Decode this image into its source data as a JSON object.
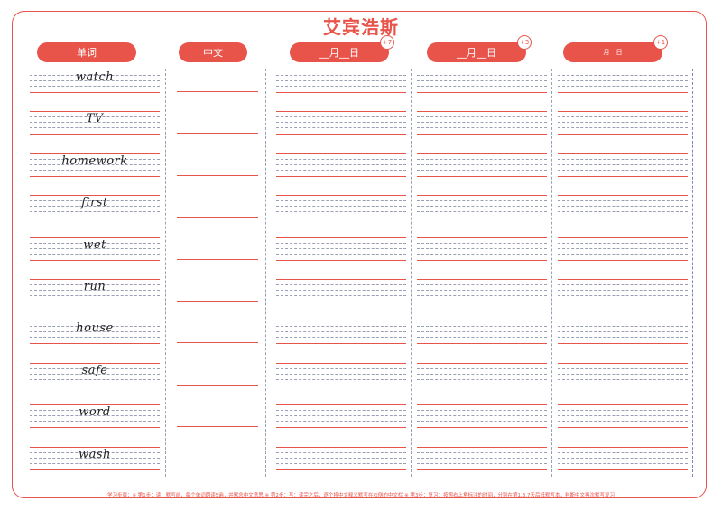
{
  "title": "艾宾浩斯",
  "headers": {
    "word": "单词",
    "chinese": "中文",
    "review1": "__月__日",
    "review2": "__月__日",
    "review3": "月　日"
  },
  "badges": {
    "review1": "+7",
    "review2": "+3",
    "review3": "+1"
  },
  "words": [
    "watch",
    "TV",
    "homework",
    "first",
    "wet",
    "run",
    "house",
    "safe",
    "word",
    "wash"
  ],
  "footer": "学习步骤：※ 第1步：读：默写前，每个单词朗读5遍，并默念中文意思 ※ 第2步：写：读完之后，逐个将中文释义默写在右侧的中文栏 ※ 第3步：复习：按照右上角标注的时间，分别在第1,3,7天后抵默写本，判断中文再次默写复习",
  "colors": {
    "accent": "#e8534a",
    "guide": "#9aa0b4"
  }
}
